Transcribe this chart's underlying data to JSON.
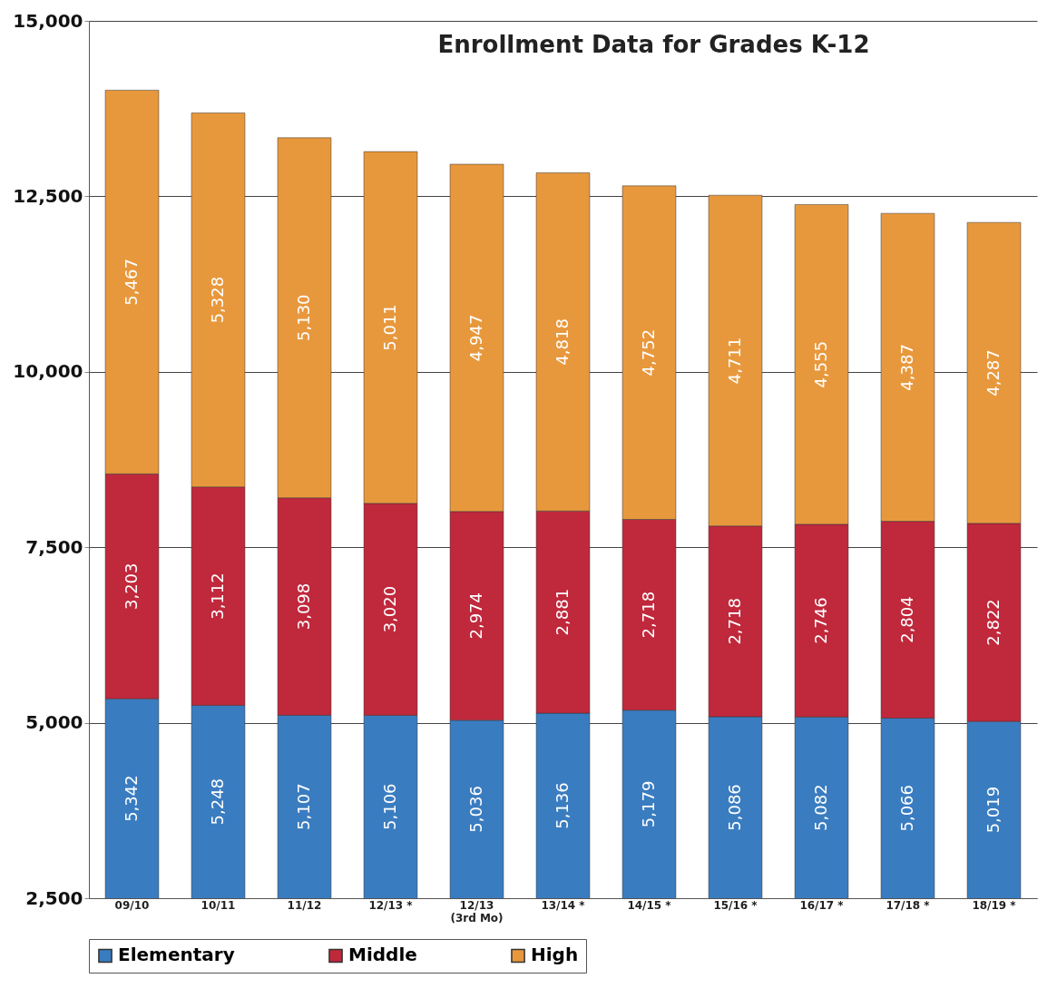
{
  "chart_data": {
    "type": "bar",
    "title": "Enrollment Data for Grades K-12",
    "categories": [
      "09/10",
      "10/11",
      "11/12",
      "12/13 *",
      "12/13\n(3rd Mo)",
      "13/14 *",
      "14/15 *",
      "15/16 *",
      "16/17 *",
      "17/18 *",
      "18/19 *"
    ],
    "series": [
      {
        "name": "Elementary",
        "color": "#3a7cc0",
        "values": [
          5342,
          5248,
          5107,
          5106,
          5036,
          5136,
          5179,
          5086,
          5082,
          5066,
          5019
        ],
        "value_labels": [
          "5,342",
          "5,248",
          "5,107",
          "5,106",
          "5,036",
          "5,136",
          "5,179",
          "5,086",
          "5,082",
          "5,066",
          "5,019"
        ]
      },
      {
        "name": "Middle",
        "color": "#c0283c",
        "values": [
          3203,
          3112,
          3098,
          3020,
          2974,
          2881,
          2718,
          2718,
          2746,
          2804,
          2822
        ],
        "value_labels": [
          "3,203",
          "3,112",
          "3,098",
          "3,020",
          "2,974",
          "2,881",
          "2,718",
          "2,718",
          "2,746",
          "2,804",
          "2,822"
        ]
      },
      {
        "name": "High",
        "color": "#e8983c",
        "values": [
          5467,
          5328,
          5130,
          5011,
          4947,
          4818,
          4752,
          4711,
          4555,
          4387,
          4287
        ],
        "value_labels": [
          "5,467",
          "5,328",
          "5,130",
          "5,011",
          "4,947",
          "4,818",
          "4,752",
          "4,711",
          "4,555",
          "4,387",
          "4,287"
        ]
      }
    ],
    "stacked": true,
    "ylim": [
      2500,
      15000
    ],
    "yticks": [
      {
        "value": 2500,
        "label": "2,500"
      },
      {
        "value": 5000,
        "label": "5,000"
      },
      {
        "value": 7500,
        "label": "7,500"
      },
      {
        "value": 10000,
        "label": "10,000"
      },
      {
        "value": 12500,
        "label": "12,500"
      },
      {
        "value": 15000,
        "label": "15,000"
      }
    ],
    "grid": "y",
    "legend": "bottom"
  }
}
